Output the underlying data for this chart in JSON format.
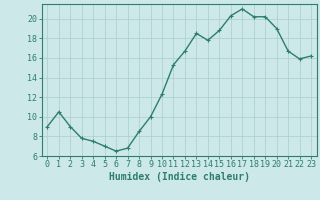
{
  "x": [
    0,
    1,
    2,
    3,
    4,
    5,
    6,
    7,
    8,
    9,
    10,
    11,
    12,
    13,
    14,
    15,
    16,
    17,
    18,
    19,
    20,
    21,
    22,
    23
  ],
  "y": [
    9.0,
    10.5,
    9.0,
    7.8,
    7.5,
    7.0,
    6.5,
    6.8,
    8.5,
    10.0,
    12.3,
    15.3,
    16.7,
    18.5,
    17.8,
    18.8,
    20.3,
    21.0,
    20.2,
    20.2,
    19.0,
    16.7,
    15.9,
    16.2
  ],
  "line_color": "#2e7d6e",
  "marker": "+",
  "marker_size": 3,
  "line_width": 1.0,
  "bg_color": "#cce8e8",
  "grid_color": "#aacece",
  "xlabel": "Humidex (Indice chaleur)",
  "xlim": [
    -0.5,
    23.5
  ],
  "ylim": [
    6,
    21.5
  ],
  "yticks": [
    6,
    8,
    10,
    12,
    14,
    16,
    18,
    20
  ],
  "xtick_labels": [
    "0",
    "1",
    "2",
    "3",
    "4",
    "5",
    "6",
    "7",
    "8",
    "9",
    "10",
    "11",
    "12",
    "13",
    "14",
    "15",
    "16",
    "17",
    "18",
    "19",
    "20",
    "21",
    "22",
    "23"
  ],
  "tick_color": "#2e7d6e",
  "label_fontsize": 7,
  "tick_fontsize": 6
}
